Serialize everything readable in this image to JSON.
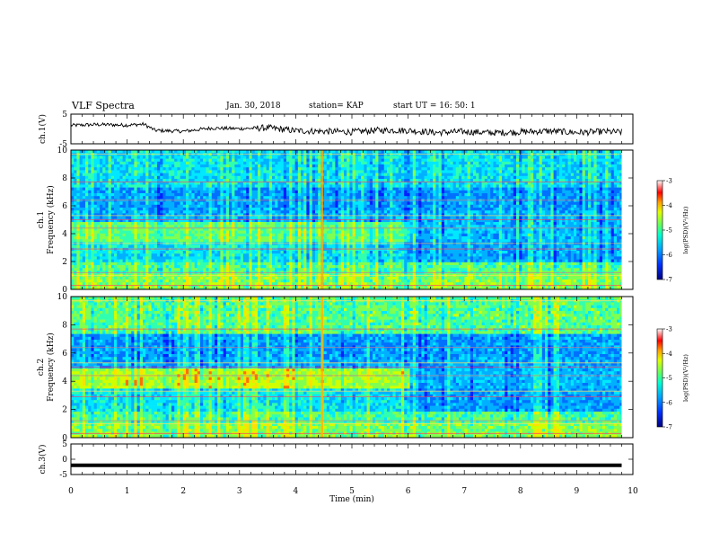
{
  "header": {
    "title": "VLF Spectra",
    "date": "Jan. 30, 2018",
    "station": "station= KAP",
    "start": "start  UT  =   16: 50: 1"
  },
  "chart_data": [
    {
      "type": "line",
      "panel": "ch1-waveform",
      "ylabel": "ch.1(V)",
      "ylim": [
        -5,
        5
      ],
      "yticks": [
        "5",
        "-5"
      ],
      "xlim": [
        0,
        10
      ],
      "note_series": "noisy voltage trace around +1 V, dipping to about -2 V",
      "approx_points_x": [
        0,
        0.5,
        1.0,
        1.3,
        1.5,
        2.0,
        2.5,
        3.0,
        3.5,
        4.0,
        4.5,
        5.0,
        5.5,
        6.0,
        6.5,
        7.0,
        7.5,
        8.0,
        8.5,
        9.0,
        9.5,
        9.8
      ],
      "approx_points_y": [
        1.2,
        1.5,
        1.3,
        1.6,
        -0.5,
        -0.8,
        0.3,
        0.1,
        0.4,
        -0.6,
        -0.8,
        -1.0,
        -0.4,
        -0.5,
        -1.2,
        -0.9,
        -1.3,
        -1.0,
        -0.7,
        -1.2,
        -0.9,
        -1.1
      ]
    },
    {
      "type": "heatmap",
      "panel": "ch1-spectrogram",
      "ylabel_line1": "ch.1",
      "ylabel_line2": "Frequency  (kHz)",
      "ylim": [
        0,
        10
      ],
      "yticks": [
        "0",
        "2",
        "4",
        "6",
        "8",
        "10"
      ],
      "xlim": [
        0,
        10
      ],
      "colorbar_label": "log(PSD)(V²/Hz)",
      "colorbar_ticks": [
        "-3",
        "-4",
        "-5",
        "-6",
        "-7"
      ],
      "colorbar_range": [
        -7,
        -3
      ]
    },
    {
      "type": "heatmap",
      "panel": "ch2-spectrogram",
      "ylabel_line1": "ch.2",
      "ylabel_line2": "Frequency  (kHz)",
      "ylim": [
        0,
        10
      ],
      "yticks": [
        "0",
        "2",
        "4",
        "6",
        "8",
        "10"
      ],
      "xlim": [
        0,
        10
      ],
      "colorbar_label": "log(PSD)(V²/Hz)",
      "colorbar_ticks": [
        "-3",
        "-4",
        "-5",
        "-6",
        "-7"
      ],
      "colorbar_range": [
        -7,
        -3
      ]
    },
    {
      "type": "line",
      "panel": "ch3-waveform",
      "ylabel": "ch.3(V)",
      "ylim": [
        -5,
        5
      ],
      "yticks": [
        "5",
        "0",
        "-5"
      ],
      "xlim": [
        0,
        10
      ],
      "constant_value": -2,
      "x_end": 9.8,
      "xlabel": "Time  (min)",
      "xticks": [
        "0",
        "1",
        "2",
        "3",
        "4",
        "5",
        "6",
        "7",
        "8",
        "9",
        "10"
      ]
    }
  ],
  "colors": {
    "axes": "#000000",
    "trace": "#000000",
    "colormap": [
      "#0000a0",
      "#0020ff",
      "#00a0ff",
      "#00ffe0",
      "#40ff80",
      "#c0ff00",
      "#ffff00",
      "#ff8000",
      "#ff0000",
      "#ffffff"
    ]
  }
}
